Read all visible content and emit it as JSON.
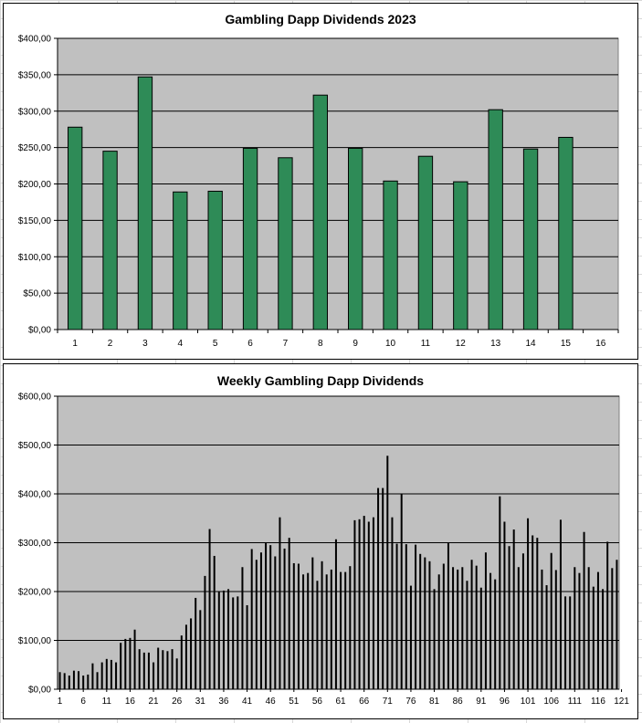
{
  "chart_data": [
    {
      "type": "bar",
      "title": "Gambling Dapp Dividends 2023",
      "categories": [
        "1",
        "2",
        "3",
        "4",
        "5",
        "6",
        "7",
        "8",
        "9",
        "10",
        "11",
        "12",
        "13",
        "14",
        "15",
        "16"
      ],
      "values": [
        278,
        245,
        347,
        189,
        190,
        249,
        236,
        322,
        249,
        204,
        238,
        203,
        302,
        248,
        264,
        null
      ],
      "ylim": [
        0,
        400
      ],
      "yticks": [
        "$0,00",
        "$50,00",
        "$100,00",
        "$150,00",
        "$200,00",
        "$250,00",
        "$300,00",
        "$350,00",
        "$400,00"
      ],
      "grid": true,
      "colors": {
        "bar": "#2e8b57",
        "plot_bg": "#c0c0c0"
      }
    },
    {
      "type": "bar",
      "title": "Weekly Gambling Dapp Dividends",
      "x_start": 1,
      "x_tick_labels": [
        "1",
        "6",
        "11",
        "16",
        "21",
        "26",
        "31",
        "36",
        "41",
        "46",
        "51",
        "56",
        "61",
        "66",
        "71",
        "76",
        "81",
        "86",
        "91",
        "96",
        "101",
        "106",
        "111",
        "116",
        "121"
      ],
      "values": [
        35,
        33,
        28,
        38,
        37,
        28,
        30,
        53,
        35,
        55,
        62,
        60,
        55,
        95,
        103,
        105,
        122,
        82,
        75,
        75,
        55,
        85,
        80,
        78,
        82,
        63,
        110,
        132,
        145,
        187,
        162,
        232,
        328,
        273,
        200,
        202,
        205,
        188,
        190,
        250,
        172,
        287,
        265,
        280,
        300,
        295,
        272,
        352,
        288,
        310,
        258,
        257,
        235,
        238,
        270,
        222,
        262,
        235,
        245,
        307,
        240,
        240,
        252,
        346,
        348,
        355,
        343,
        352,
        412,
        412,
        478,
        352,
        298,
        400,
        297,
        212,
        296,
        277,
        270,
        262,
        205,
        235,
        257,
        300,
        250,
        245,
        250,
        222,
        265,
        253,
        208,
        280,
        238,
        225,
        395,
        343,
        293,
        327,
        250,
        278,
        350,
        315,
        310,
        245,
        213,
        279,
        244,
        347,
        190,
        190,
        250,
        238,
        322,
        250,
        210,
        240,
        205,
        302,
        248,
        265
      ],
      "ylim": [
        0,
        600
      ],
      "yticks": [
        "$0,00",
        "$100,00",
        "$200,00",
        "$300,00",
        "$400,00",
        "$500,00",
        "$600,00"
      ],
      "grid": true,
      "colors": {
        "bar": "#000000",
        "bar_fill": "#2e8b57",
        "plot_bg": "#c0c0c0"
      }
    }
  ]
}
